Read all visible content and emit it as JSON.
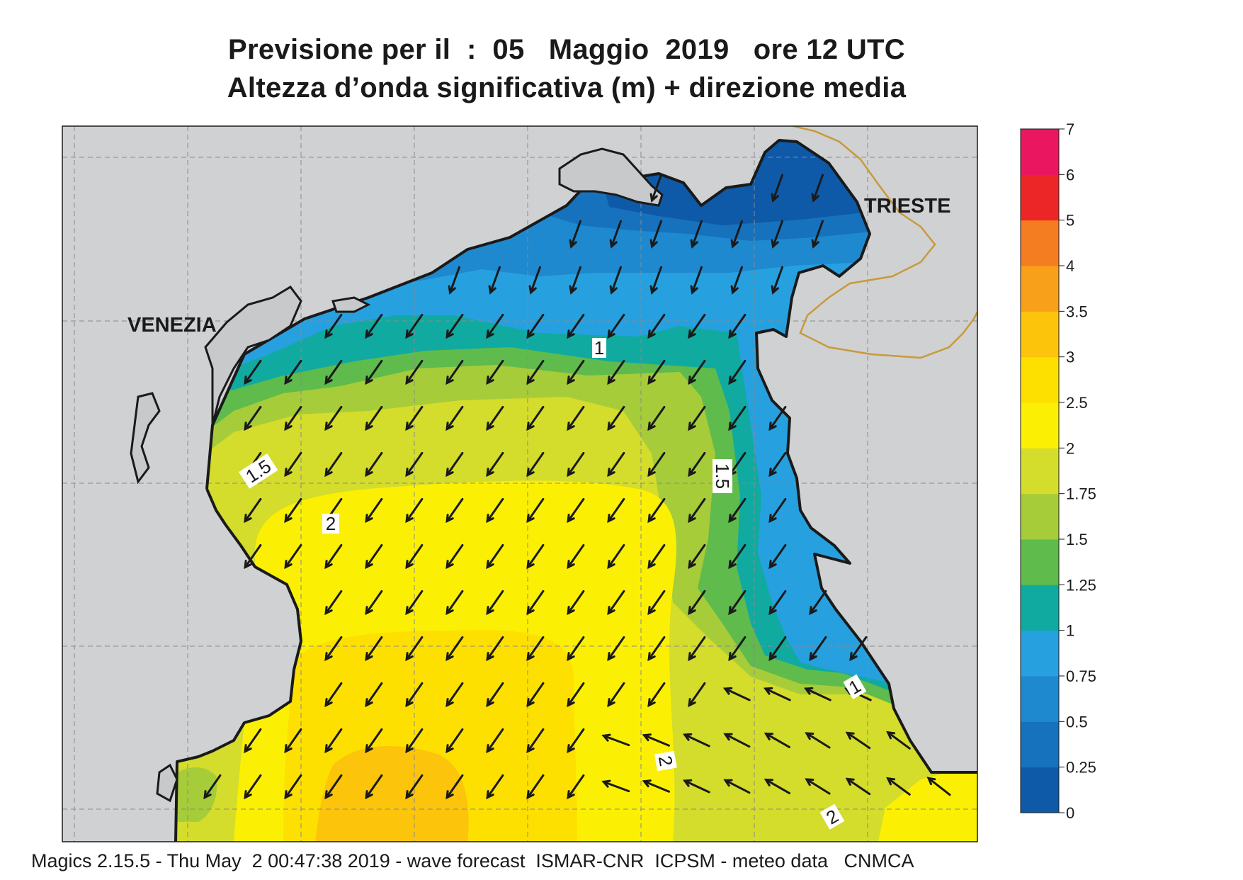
{
  "header": {
    "title_line1": "Previsione per il  :  05   Maggio  2019   ore 12 UTC",
    "title_line2": "Altezza d’onda significativa (m) + direzione media"
  },
  "map": {
    "cities": [
      {
        "name": "VENEZIA"
      },
      {
        "name": "TRIESTE"
      }
    ],
    "contour_labels": [
      "1",
      "1.5",
      "2",
      "1.5",
      "1",
      "2",
      "2"
    ],
    "arrow_direction": "south-west",
    "land_color": "#d0d1d3",
    "coast_color": "#1a1a1a",
    "border_color": "#c89a3a"
  },
  "legend": {
    "levels": [
      "0",
      "0.25",
      "0.5",
      "0.75",
      "1",
      "1.25",
      "1.5",
      "1.75",
      "2",
      "2.5",
      "3",
      "3.5",
      "4",
      "5",
      "6",
      "7"
    ],
    "colors": [
      "#0e5aa8",
      "#1672bc",
      "#1e89cf",
      "#27a0e0",
      "#10aaa0",
      "#5fbb4c",
      "#a6cc3a",
      "#d4dc2c",
      "#fbf003",
      "#fde000",
      "#fcc40a",
      "#f9a01a",
      "#f57d21",
      "#ec2626",
      "#ea1760"
    ]
  },
  "footer": {
    "text": "Magics 2.15.5 - Thu May  2 00:47:38 2019 - wave forecast  ISMAR-CNR  ICPSM - meteo data   CNMCA"
  }
}
